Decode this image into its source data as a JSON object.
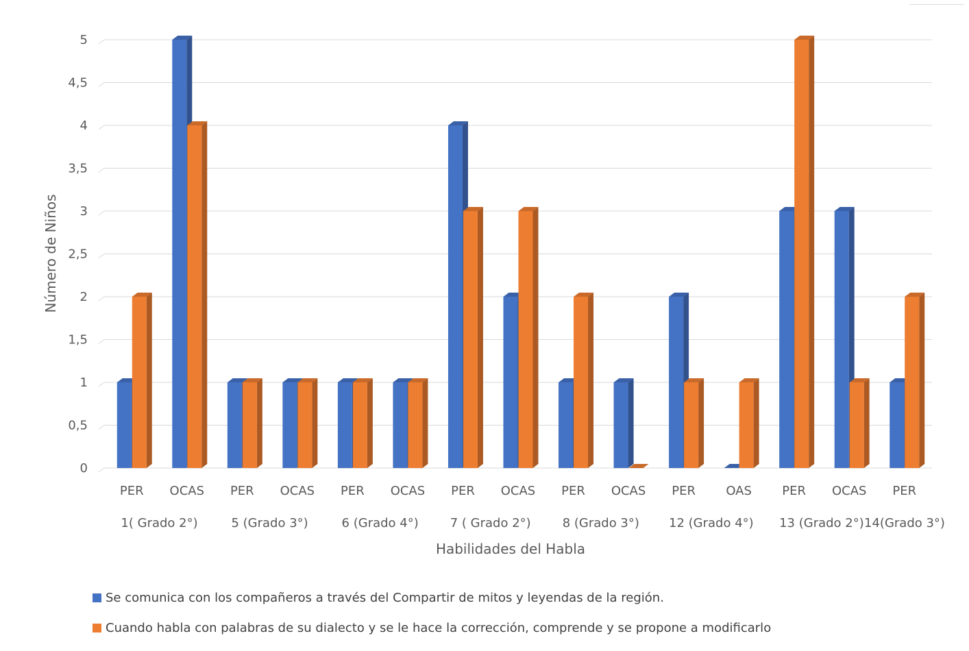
{
  "chart_data": {
    "type": "bar",
    "title": "",
    "xlabel": "Habilidades del Habla",
    "ylabel": "Número de Niños",
    "ylim": [
      0,
      5
    ],
    "yticks": [
      "0",
      "0,5",
      "1",
      "1,5",
      "2",
      "2,5",
      "3",
      "3,5",
      "4",
      "4,5",
      "5"
    ],
    "grid": true,
    "legend_position": "bottom",
    "categories": [
      "PER",
      "OCAS",
      "PER",
      "OCAS",
      "PER",
      "OCAS",
      "PER",
      "OCAS",
      "PER",
      "OCAS",
      "PER",
      "OAS",
      "PER",
      "OCAS",
      "PER"
    ],
    "groups": [
      "1( Grado 2°)",
      "5 (Grado 3°)",
      "6 (Grado 4°)",
      "7 ( Grado 2°)",
      "8 (Grado 3°)",
      "12 (Grado 4°)",
      "13 (Grado 2°)",
      "14(Grado 3°)"
    ],
    "series": [
      {
        "name": "Se comunica con los compañeros a través del  Compartir de mitos y leyendas de la región.",
        "color": "#4472C4",
        "values": [
          1,
          5,
          1,
          1,
          1,
          1,
          4,
          2,
          1,
          1,
          2,
          0,
          3,
          3,
          1
        ]
      },
      {
        "name": "Cuando habla con palabras de su dialecto y se le hace la corrección, comprende y se propone a modificarlo",
        "color": "#ED7D31",
        "values": [
          2,
          4,
          1,
          1,
          1,
          1,
          3,
          3,
          2,
          0,
          1,
          1,
          5,
          1,
          2
        ]
      }
    ]
  }
}
